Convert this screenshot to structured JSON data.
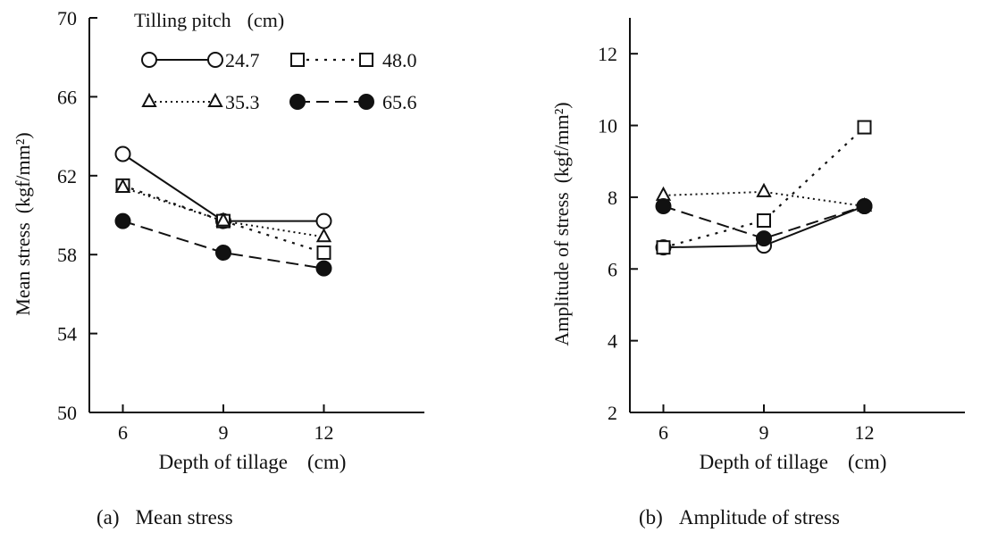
{
  "legend": {
    "title": "Tilling pitch",
    "unit": "(cm)"
  },
  "chart_data": [
    {
      "type": "line",
      "caption_letter": "(a)",
      "caption_text": "Mean stress",
      "xlabel": "Depth of tillage",
      "xunit": "(cm)",
      "ylabel": "Mean stress",
      "yunit": "(kgf/mm²)",
      "x": [
        6,
        9,
        12
      ],
      "xlim": [
        5,
        15
      ],
      "ylim": [
        50,
        70
      ],
      "yticks": [
        50,
        54,
        58,
        62,
        66,
        70
      ],
      "xticks": [
        6,
        9,
        12
      ],
      "legend_position": "top-left",
      "series": [
        {
          "name": "24.7",
          "marker": "circle-open",
          "dash": "solid",
          "values": [
            63.1,
            59.7,
            59.7
          ]
        },
        {
          "name": "48.0",
          "marker": "square-open",
          "dash": "dotted-wide",
          "values": [
            61.5,
            59.7,
            58.1
          ]
        },
        {
          "name": "35.3",
          "marker": "triangle-open",
          "dash": "dotted",
          "values": [
            61.4,
            59.7,
            58.9
          ]
        },
        {
          "name": "65.6",
          "marker": "circle-filled",
          "dash": "dashed",
          "values": [
            59.7,
            58.1,
            57.3
          ]
        }
      ]
    },
    {
      "type": "line",
      "caption_letter": "(b)",
      "caption_text": "Amplitude of stress",
      "xlabel": "Depth of tillage",
      "xunit": "(cm)",
      "ylabel": "Amplitude of stress",
      "yunit": "(kgf/mm²)",
      "x": [
        6,
        9,
        12
      ],
      "xlim": [
        5,
        15
      ],
      "ylim": [
        2,
        13
      ],
      "yticks": [
        2,
        4,
        6,
        8,
        10,
        12
      ],
      "xticks": [
        6,
        9,
        12
      ],
      "series": [
        {
          "name": "24.7",
          "marker": "circle-open",
          "dash": "solid",
          "values": [
            6.6,
            6.65,
            7.75
          ]
        },
        {
          "name": "48.0",
          "marker": "square-open",
          "dash": "dotted-wide",
          "values": [
            6.6,
            7.35,
            9.95
          ]
        },
        {
          "name": "35.3",
          "marker": "triangle-open",
          "dash": "dotted",
          "values": [
            8.05,
            8.15,
            7.75
          ]
        },
        {
          "name": "65.6",
          "marker": "circle-filled",
          "dash": "dashed",
          "values": [
            7.75,
            6.85,
            7.75
          ]
        }
      ]
    }
  ]
}
